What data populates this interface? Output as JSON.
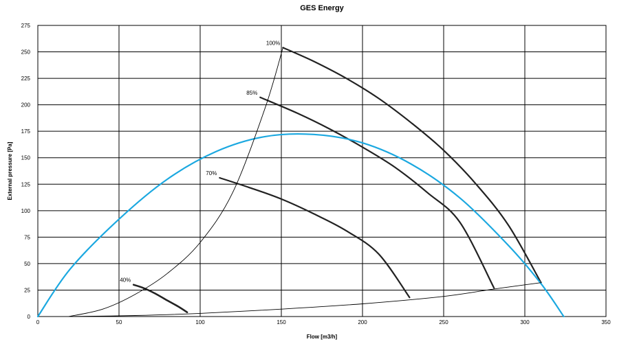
{
  "chart_data": {
    "type": "line",
    "title": "GES Energy",
    "xlabel": "Flow [m3/h]",
    "ylabel": "External pressure [Pa]",
    "xlim": [
      0,
      350
    ],
    "ylim": [
      0,
      275
    ],
    "xticks": [
      0,
      50,
      100,
      150,
      200,
      250,
      300,
      350
    ],
    "yticks": [
      0,
      25,
      50,
      75,
      100,
      125,
      150,
      175,
      200,
      225,
      250,
      275
    ],
    "grid": true,
    "colors": {
      "fan_curves": "#222222",
      "system_curve": "#1ba8e0",
      "boundary": "#000000"
    },
    "series": [
      {
        "label": "100%",
        "x": [
          151,
          170,
          190,
          210,
          230,
          250,
          270,
          290,
          310
        ],
        "y": [
          254,
          241,
          225,
          206,
          183,
          157,
          125,
          86,
          32
        ]
      },
      {
        "label": "85%",
        "x": [
          137,
          160,
          180,
          200,
          220,
          240,
          260,
          281
        ],
        "y": [
          207,
          192,
          177,
          160,
          141,
          117,
          89,
          27
        ]
      },
      {
        "label": "70%",
        "x": [
          112,
          130,
          150,
          170,
          190,
          210,
          229
        ],
        "y": [
          131,
          122,
          111,
          97,
          81,
          59,
          18
        ]
      },
      {
        "label": "40%",
        "x": [
          59,
          65,
          72,
          80,
          87,
          92
        ],
        "y": [
          30,
          27,
          22,
          15,
          9,
          4
        ]
      },
      {
        "x": [
          0,
          20,
          50,
          80,
          110,
          140,
          170,
          200,
          230,
          260,
          290,
          310,
          324
        ],
        "y": [
          0,
          45,
          92,
          130,
          156,
          170,
          172,
          164,
          144,
          112,
          67,
          31,
          0
        ]
      },
      {
        "x": [
          19,
          40,
          60,
          80,
          100,
          120,
          140,
          151
        ],
        "y": [
          0,
          7,
          21,
          41,
          70,
          117,
          197,
          254
        ]
      },
      {
        "x": [
          19,
          60,
          100,
          150,
          200,
          250,
          281,
          310
        ],
        "y": [
          0,
          1,
          3,
          7,
          12,
          19,
          26,
          32
        ]
      }
    ]
  }
}
